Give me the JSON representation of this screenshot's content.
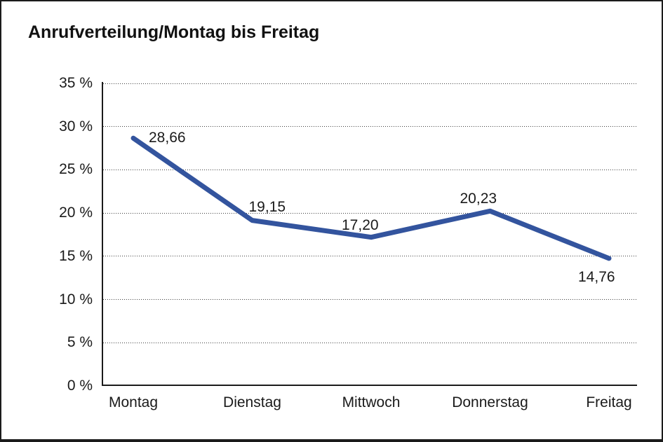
{
  "chart_data": {
    "type": "line",
    "title": "Anrufverteilung/Montag bis Freitag",
    "categories": [
      "Montag",
      "Dienstag",
      "Mittwoch",
      "Donnerstag",
      "Freitag"
    ],
    "values": [
      28.66,
      19.15,
      17.2,
      20.23,
      14.76
    ],
    "point_labels": [
      "28,66",
      "19,15",
      "17,20",
      "20,23",
      "14,76"
    ],
    "point_label_positions": [
      "above-right",
      "above",
      "above-left",
      "above-left",
      "below-left"
    ],
    "y_ticks": [
      0,
      5,
      10,
      15,
      20,
      25,
      30,
      35
    ],
    "y_tick_labels": [
      "0 %",
      "5 %",
      "10 %",
      "15 %",
      "20 %",
      "25 %",
      "30 %",
      "35 %"
    ],
    "ylim": [
      0,
      35
    ],
    "xlabel": "",
    "ylabel": "",
    "grid": "horizontal-dotted",
    "legend": "none",
    "line_color": "#33549E",
    "axis_color": "#1b1b1b",
    "text_color": "#1a1a1a"
  }
}
